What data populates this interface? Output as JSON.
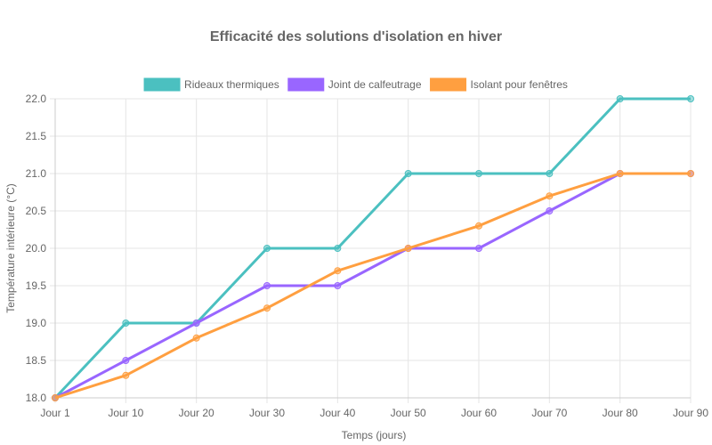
{
  "chart_data": {
    "type": "line",
    "title": "Efficacité des solutions d'isolation en hiver",
    "xlabel": "Temps (jours)",
    "ylabel": "Température intérieure (°C)",
    "categories": [
      "Jour 1",
      "Jour 10",
      "Jour 20",
      "Jour 30",
      "Jour 40",
      "Jour 50",
      "Jour 60",
      "Jour 70",
      "Jour 80",
      "Jour 90"
    ],
    "ylim": [
      18.0,
      22.0
    ],
    "yticks": [
      "18.0",
      "18.5",
      "19.0",
      "19.5",
      "20.0",
      "20.5",
      "21.0",
      "21.5",
      "22.0"
    ],
    "grid": true,
    "legend_position": "top",
    "series": [
      {
        "name": "Rideaux thermiques",
        "color": "#4bc0c0",
        "values": [
          18.0,
          19.0,
          19.0,
          20.0,
          20.0,
          21.0,
          21.0,
          21.0,
          22.0,
          22.0
        ]
      },
      {
        "name": "Joint de calfeutrage",
        "color": "#9966ff",
        "values": [
          18.0,
          18.5,
          19.0,
          19.5,
          19.5,
          20.0,
          20.0,
          20.5,
          21.0,
          21.0
        ]
      },
      {
        "name": "Isolant pour fenêtres",
        "color": "#ff9f40",
        "values": [
          18.0,
          18.3,
          18.8,
          19.2,
          19.7,
          20.0,
          20.3,
          20.7,
          21.0,
          21.0
        ]
      }
    ]
  }
}
